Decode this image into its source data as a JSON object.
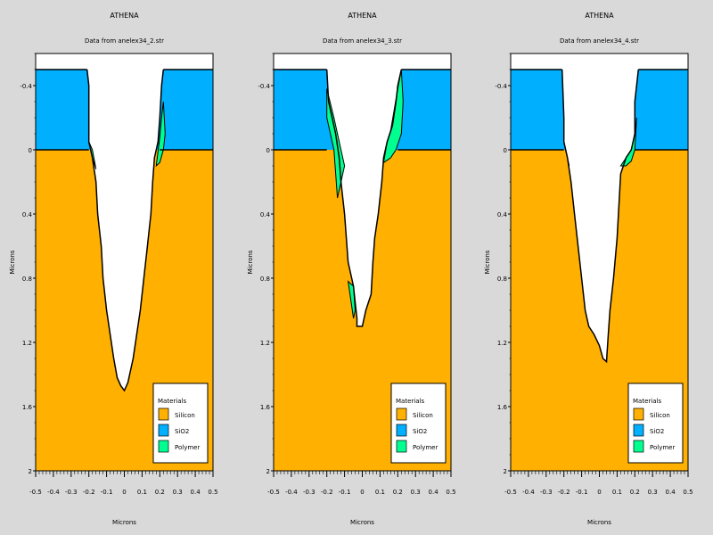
{
  "chart_data": [
    {
      "type": "area",
      "title": "ATHENA",
      "subtitle": "Data from anelex34_2.str",
      "xlabel": "Microns",
      "ylabel": "Microns",
      "xlim": [
        -0.5,
        0.5
      ],
      "ylim": [
        2.0,
        -0.6
      ],
      "y_inverted": true,
      "xticks": [
        "-0.5",
        "-0.4",
        "-0.3",
        "-0.2",
        "-0.1",
        "0",
        "0.1",
        "0.2",
        "0.3",
        "0.4",
        "0.5"
      ],
      "yticks": [
        "-0.4",
        "0",
        "0.4",
        "0.8",
        "1.2",
        "1.6",
        "2"
      ],
      "ytick_values": [
        -0.4,
        0,
        0.4,
        0.8,
        1.2,
        1.6,
        2.0
      ],
      "oxide_top": -0.5,
      "silicon_top": 0.0,
      "trench_left": [
        [
          -0.21,
          -0.5
        ],
        [
          -0.2,
          -0.4
        ],
        [
          -0.2,
          -0.2
        ],
        [
          -0.2,
          -0.05
        ],
        [
          -0.18,
          0.05
        ],
        [
          -0.16,
          0.2
        ],
        [
          -0.15,
          0.4
        ],
        [
          -0.13,
          0.6
        ],
        [
          -0.12,
          0.8
        ],
        [
          -0.1,
          1.0
        ],
        [
          -0.08,
          1.15
        ],
        [
          -0.06,
          1.3
        ],
        [
          -0.04,
          1.42
        ],
        [
          -0.02,
          1.47
        ],
        [
          0.0,
          1.5
        ]
      ],
      "trench_right": [
        [
          0.0,
          1.5
        ],
        [
          0.02,
          1.45
        ],
        [
          0.05,
          1.3
        ],
        [
          0.07,
          1.15
        ],
        [
          0.09,
          1.0
        ],
        [
          0.11,
          0.8
        ],
        [
          0.13,
          0.6
        ],
        [
          0.15,
          0.4
        ],
        [
          0.16,
          0.2
        ],
        [
          0.17,
          0.05
        ],
        [
          0.19,
          -0.05
        ],
        [
          0.2,
          -0.2
        ],
        [
          0.21,
          -0.4
        ],
        [
          0.22,
          -0.5
        ]
      ],
      "polymer": [
        [
          [
            -0.2,
            -0.05
          ],
          [
            -0.18,
            0.05
          ],
          [
            -0.16,
            0.12
          ],
          [
            -0.18,
            0.0
          ]
        ],
        [
          [
            0.2,
            -0.08
          ],
          [
            0.21,
            -0.2
          ],
          [
            0.22,
            -0.3
          ],
          [
            0.23,
            -0.1
          ],
          [
            0.22,
            0.0
          ],
          [
            0.2,
            0.08
          ],
          [
            0.18,
            0.1
          ]
        ]
      ],
      "legend": {
        "title": "Materials",
        "placement": "bottom-right",
        "entries": [
          "Silicon",
          "SiO2",
          "Polymer"
        ]
      },
      "colors": {
        "silicon": "#ffb000",
        "sio2": "#00b0ff",
        "polymer": "#00ff90",
        "trench": "#ffffff"
      }
    },
    {
      "type": "area",
      "title": "ATHENA",
      "subtitle": "Data from anelex34_3.str",
      "xlabel": "Microns",
      "ylabel": "Microns",
      "xlim": [
        -0.5,
        0.5
      ],
      "ylim": [
        2.0,
        -0.6
      ],
      "y_inverted": true,
      "xticks": [
        "-0.5",
        "-0.4",
        "-0.3",
        "-0.2",
        "-0.1",
        "0",
        "0.1",
        "0.2",
        "0.3",
        "0.4",
        "0.5"
      ],
      "yticks": [
        "-0.4",
        "0",
        "0.4",
        "0.8",
        "1.2",
        "1.6",
        "2"
      ],
      "ytick_values": [
        -0.4,
        0,
        0.4,
        0.8,
        1.2,
        1.6,
        2.0
      ],
      "oxide_top": -0.5,
      "silicon_top": 0.0,
      "trench_left": [
        [
          -0.2,
          -0.5
        ],
        [
          -0.19,
          -0.3
        ],
        [
          -0.15,
          -0.1
        ],
        [
          -0.13,
          0.05
        ],
        [
          -0.12,
          0.2
        ],
        [
          -0.1,
          0.4
        ],
        [
          -0.09,
          0.55
        ],
        [
          -0.08,
          0.7
        ],
        [
          -0.05,
          0.85
        ],
        [
          -0.04,
          0.95
        ],
        [
          -0.03,
          1.05
        ],
        [
          -0.03,
          1.1
        ]
      ],
      "trench_right": [
        [
          -0.03,
          1.1
        ],
        [
          0.0,
          1.1
        ],
        [
          0.02,
          1.0
        ],
        [
          0.05,
          0.9
        ],
        [
          0.06,
          0.7
        ],
        [
          0.07,
          0.55
        ],
        [
          0.09,
          0.4
        ],
        [
          0.11,
          0.2
        ],
        [
          0.12,
          0.05
        ],
        [
          0.14,
          -0.05
        ],
        [
          0.17,
          -0.15
        ],
        [
          0.19,
          -0.3
        ],
        [
          0.2,
          -0.4
        ],
        [
          0.22,
          -0.5
        ]
      ],
      "polymer": [
        [
          [
            -0.2,
            -0.38
          ],
          [
            -0.16,
            -0.2
          ],
          [
            -0.12,
            0.0
          ],
          [
            -0.1,
            0.1
          ],
          [
            -0.12,
            0.2
          ],
          [
            -0.14,
            0.3
          ],
          [
            -0.16,
            0.0
          ],
          [
            -0.18,
            -0.1
          ],
          [
            -0.2,
            -0.2
          ]
        ],
        [
          [
            0.12,
            0.08
          ],
          [
            0.14,
            -0.05
          ],
          [
            0.16,
            -0.12
          ],
          [
            0.18,
            -0.25
          ],
          [
            0.2,
            -0.38
          ],
          [
            0.22,
            -0.5
          ],
          [
            0.23,
            -0.3
          ],
          [
            0.22,
            -0.1
          ],
          [
            0.19,
            0.0
          ],
          [
            0.16,
            0.05
          ]
        ],
        [
          [
            -0.08,
            0.82
          ],
          [
            -0.05,
            0.85
          ],
          [
            -0.04,
            1.0
          ],
          [
            -0.05,
            1.05
          ]
        ]
      ],
      "legend": {
        "title": "Materials",
        "placement": "bottom-right",
        "entries": [
          "Silicon",
          "SiO2",
          "Polymer"
        ]
      },
      "colors": {
        "silicon": "#ffb000",
        "sio2": "#00b0ff",
        "polymer": "#00ff90",
        "trench": "#ffffff"
      }
    },
    {
      "type": "area",
      "title": "ATHENA",
      "subtitle": "Data from anelex34_4.str",
      "xlabel": "Microns",
      "ylabel": "Microns",
      "xlim": [
        -0.5,
        0.5
      ],
      "ylim": [
        2.0,
        -0.6
      ],
      "y_inverted": true,
      "xticks": [
        "-0.5",
        "-0.4",
        "-0.3",
        "-0.2",
        "-0.1",
        "0",
        "0.1",
        "0.2",
        "0.3",
        "0.4",
        "0.5"
      ],
      "yticks": [
        "-0.4",
        "0",
        "0.4",
        "0.8",
        "1.2",
        "1.6",
        "2"
      ],
      "ytick_values": [
        -0.4,
        0,
        0.4,
        0.8,
        1.2,
        1.6,
        2.0
      ],
      "oxide_top": -0.5,
      "silicon_top": 0.0,
      "trench_left": [
        [
          -0.21,
          -0.5
        ],
        [
          -0.2,
          -0.2
        ],
        [
          -0.2,
          -0.05
        ],
        [
          -0.18,
          0.05
        ],
        [
          -0.16,
          0.2
        ],
        [
          -0.14,
          0.4
        ],
        [
          -0.12,
          0.6
        ],
        [
          -0.1,
          0.8
        ],
        [
          -0.08,
          1.0
        ],
        [
          -0.06,
          1.1
        ],
        [
          -0.03,
          1.15
        ],
        [
          0.0,
          1.22
        ],
        [
          0.02,
          1.3
        ],
        [
          0.04,
          1.32
        ]
      ],
      "trench_right": [
        [
          0.04,
          1.32
        ],
        [
          0.05,
          1.15
        ],
        [
          0.06,
          1.0
        ],
        [
          0.08,
          0.8
        ],
        [
          0.1,
          0.55
        ],
        [
          0.11,
          0.35
        ],
        [
          0.12,
          0.15
        ],
        [
          0.15,
          0.05
        ],
        [
          0.18,
          0.0
        ],
        [
          0.2,
          -0.1
        ],
        [
          0.2,
          -0.3
        ],
        [
          0.21,
          -0.4
        ],
        [
          0.22,
          -0.5
        ]
      ],
      "polymer": [
        [
          [
            -0.2,
            -0.05
          ],
          [
            -0.18,
            0.05
          ],
          [
            -0.17,
            0.1
          ],
          [
            -0.19,
            0.0
          ]
        ],
        [
          [
            0.12,
            0.1
          ],
          [
            0.15,
            0.05
          ],
          [
            0.18,
            0.0
          ],
          [
            0.2,
            -0.1
          ],
          [
            0.21,
            -0.2
          ],
          [
            0.2,
            0.0
          ],
          [
            0.18,
            0.07
          ],
          [
            0.15,
            0.1
          ]
        ]
      ],
      "legend": {
        "title": "Materials",
        "placement": "bottom-right",
        "entries": [
          "Silicon",
          "SiO2",
          "Polymer"
        ]
      },
      "colors": {
        "silicon": "#ffb000",
        "sio2": "#00b0ff",
        "polymer": "#00ff90",
        "trench": "#ffffff"
      }
    }
  ]
}
